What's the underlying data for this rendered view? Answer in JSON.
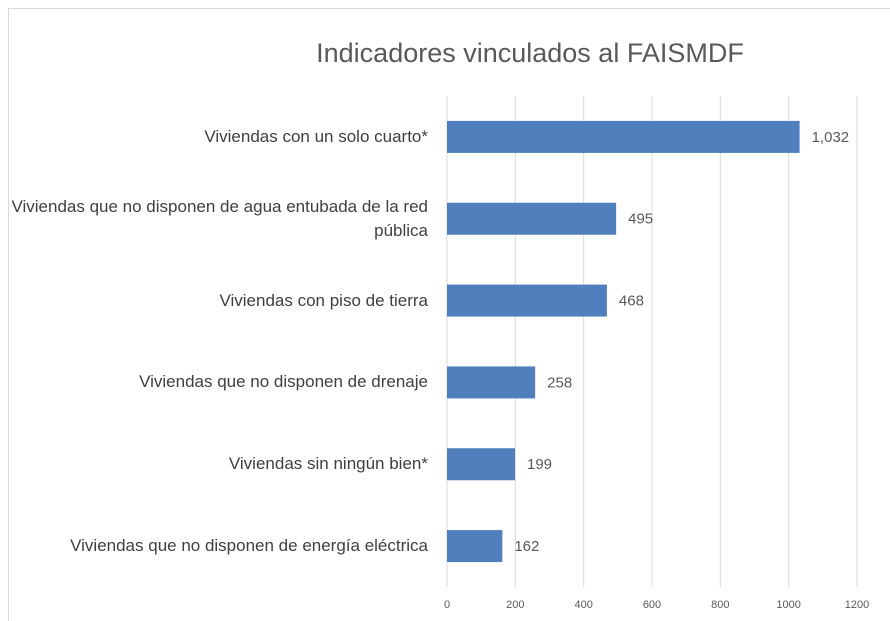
{
  "chart_data": {
    "type": "bar",
    "orientation": "horizontal",
    "title": "Indicadores vinculados al FAISMDF",
    "categories": [
      "Viviendas con un solo cuarto*",
      "Viviendas que no disponen de agua entubada de la red pública",
      "Viviendas con piso de tierra",
      "Viviendas que no disponen de drenaje",
      "Viviendas sin ningún bien*",
      "Viviendas que no disponen de energía eléctrica"
    ],
    "values": [
      1032,
      495,
      468,
      258,
      199,
      162
    ],
    "value_labels": [
      "1,032",
      "495",
      "468",
      "258",
      "199",
      "162"
    ],
    "color": "#4f7fbd",
    "xlim": [
      0,
      1200
    ],
    "xticks": [
      0,
      200,
      400,
      600,
      800,
      1000,
      1200
    ],
    "grid": true
  }
}
